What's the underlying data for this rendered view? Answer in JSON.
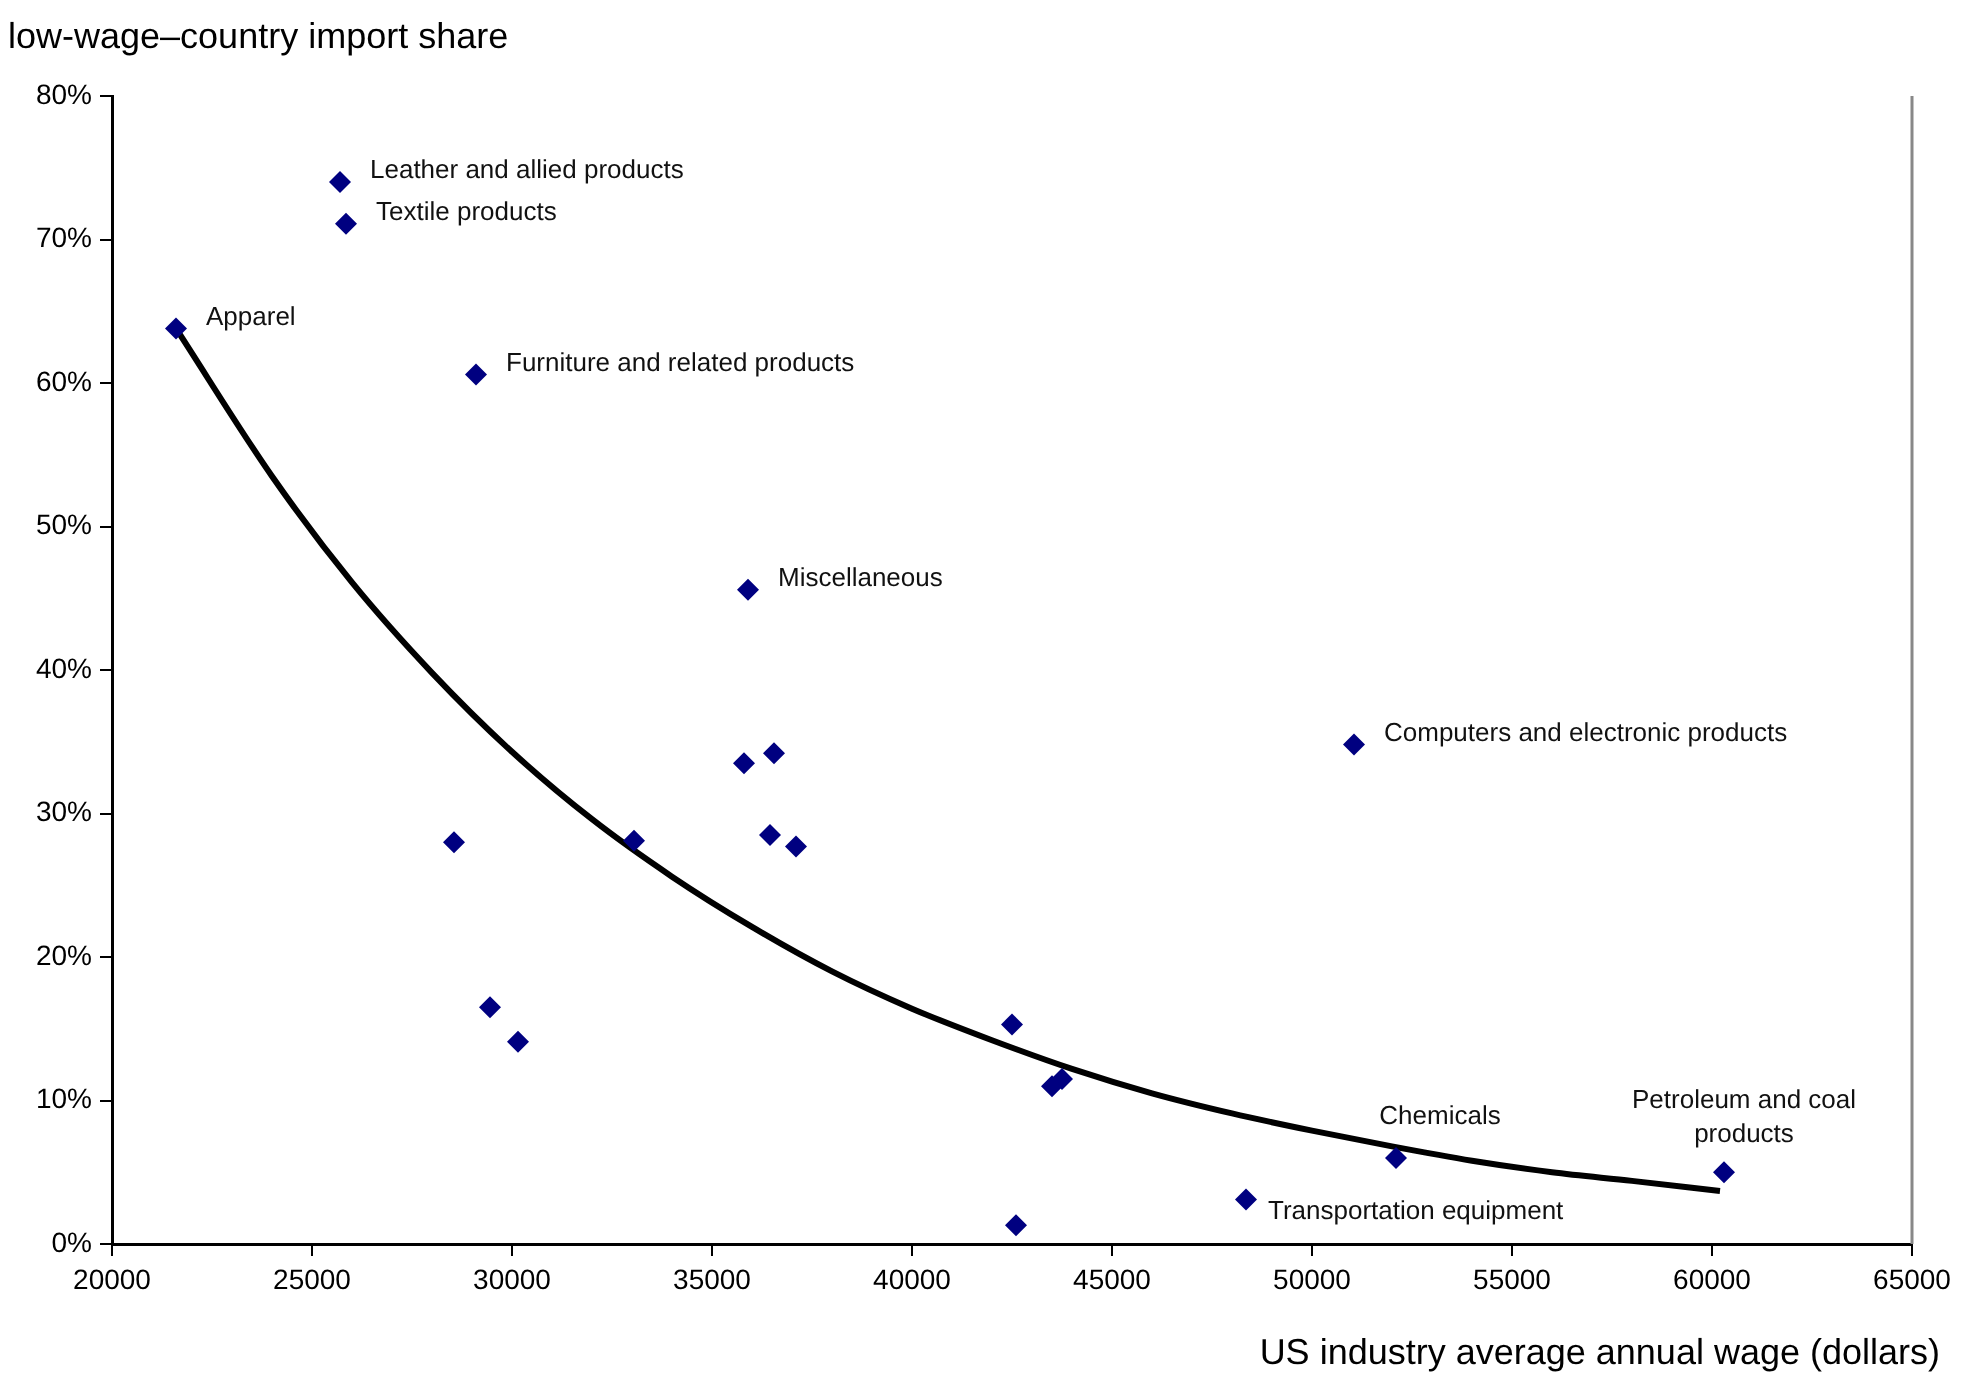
{
  "chart_data": {
    "type": "scatter",
    "xlabel": "US industry average annual wage (dollars)",
    "ylabel": "low-wage–country import share",
    "xlim": [
      20000,
      65000
    ],
    "xticks": [
      20000,
      25000,
      30000,
      35000,
      40000,
      45000,
      50000,
      55000,
      60000,
      65000
    ],
    "ylim": [
      0,
      80
    ],
    "yticks": [
      {
        "value": 0,
        "label": "0%"
      },
      {
        "value": 10,
        "label": "10%"
      },
      {
        "value": 20,
        "label": "20%"
      },
      {
        "value": 30,
        "label": "30%"
      },
      {
        "value": 40,
        "label": "40%"
      },
      {
        "value": 50,
        "label": "50%"
      },
      {
        "value": 60,
        "label": "60%"
      },
      {
        "value": 70,
        "label": "70%"
      },
      {
        "value": 80,
        "label": "80%"
      }
    ],
    "grid": false,
    "legend": false,
    "series": [
      {
        "color": "#000080",
        "marker": "diamond",
        "x": [
          25700,
          25850,
          21600,
          29100,
          35900,
          28550,
          29450,
          30150,
          33050,
          35800,
          36550,
          36450,
          37100,
          42500,
          43500,
          43750,
          42600,
          51050,
          52100,
          48350,
          60300
        ],
        "values": [
          74.0,
          71.1,
          63.8,
          60.6,
          45.6,
          28.0,
          16.5,
          14.1,
          28.1,
          33.5,
          34.2,
          28.5,
          27.7,
          15.3,
          11.0,
          11.5,
          1.3,
          34.8,
          6.0,
          3.1,
          5.0
        ]
      },
      {
        "type": "line",
        "color": "#000000",
        "marker": "none",
        "x": [
          21600,
          24000,
          26000,
          28000,
          30000,
          32000,
          34000,
          36000,
          38000,
          40000,
          42000,
          44000,
          46000,
          48000,
          50000,
          52000,
          54000,
          56000,
          58000,
          60200
        ],
        "values": [
          63.8,
          53.5,
          46.1,
          39.8,
          34.3,
          29.6,
          25.6,
          22.1,
          19.0,
          16.4,
          14.2,
          12.2,
          10.5,
          9.1,
          7.9,
          6.8,
          5.8,
          5.0,
          4.4,
          3.7
        ]
      }
    ],
    "annotations": [
      {
        "text": "Leather and allied products",
        "x": 25700,
        "y": 74.0
      },
      {
        "text": "Textile products",
        "x": 25850,
        "y": 71.1
      },
      {
        "text": "Apparel",
        "x": 21600,
        "y": 63.8
      },
      {
        "text": "Furniture and related products",
        "x": 29100,
        "y": 60.6
      },
      {
        "text": "Miscellaneous",
        "x": 35900,
        "y": 45.6
      },
      {
        "text": "Computers and electronic products",
        "x": 51050,
        "y": 34.8
      },
      {
        "text": "Chemicals",
        "x": 52100,
        "y": 6.0
      },
      {
        "text": "Transportation equipment",
        "x": 48350,
        "y": 3.1
      },
      {
        "text": "Petroleum and coal products",
        "x": 60300,
        "y": 5.0
      }
    ]
  }
}
